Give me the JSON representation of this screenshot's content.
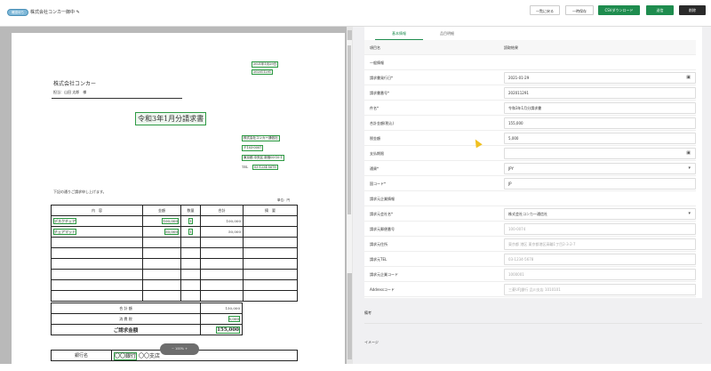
{
  "header": {
    "badge": "確認待ち",
    "title": "株式会社コンカー御中",
    "edit_icon": "pencil-icon",
    "buttons": {
      "back": "一覧に戻る",
      "save": "一時保存",
      "csv": "CSVダウンロード",
      "send": "送信",
      "delete": "削除"
    }
  },
  "document": {
    "date": "2021年1月29日",
    "number": "202011291",
    "to_company": "株式会社コンカー",
    "to_person": "担当：山田 太郎　様",
    "title": "令和3年1月分請求書",
    "from_company": "株式会社コンカー通信社",
    "from_zip": "〒103-0007",
    "from_address": "東京都 中央区 新宿00-10-1",
    "tel_label": "TEL",
    "tel": "03-1234-5678",
    "intro": "下記の通りご請求申し上げます。",
    "unit": "単位：円",
    "columns": [
      "内　容",
      "金額",
      "数量",
      "合計",
      "摘　要"
    ],
    "items": [
      {
        "name": "デスクチェア",
        "price": "100,000",
        "qty": "1",
        "total": "100,000"
      },
      {
        "name": "チェアマット",
        "price": "50,000",
        "qty": "1",
        "total": "50,000"
      }
    ],
    "subtotal_label": "合 計 額",
    "subtotal": "150,000",
    "tax_label": "消 費 税",
    "tax": "5,000",
    "grand_label": "ご請求金額",
    "grand": "155,000",
    "bank_label": "銀行名",
    "bank": "〇〇銀行",
    "branch": "〇〇支店",
    "zoom": "−  100%  +"
  },
  "panel": {
    "tabs": [
      "基本情報",
      "品目明細"
    ],
    "col_item": "項目名",
    "col_result": "読取結果",
    "section1": "一般情報",
    "fields1": [
      {
        "label": "請求書発行日*",
        "value": "2021-01-29",
        "icon": "calendar-icon"
      },
      {
        "label": "請求書番号*",
        "value": "202011291"
      },
      {
        "label": "件名*",
        "value": "令和3年1月分請求書"
      },
      {
        "label": "合計金額(税込)",
        "value": "155,000"
      },
      {
        "label": "税金額",
        "value": "5,000"
      },
      {
        "label": "支払期限",
        "value": "",
        "icon": "calendar-icon"
      },
      {
        "label": "通貨*",
        "value": "JPY",
        "icon": "dropdown-icon"
      },
      {
        "label": "国コード*",
        "value": "JP"
      }
    ],
    "section2": "請求元企業情報",
    "fields2": [
      {
        "label": "請求元会社名*",
        "value": "株式会社コンカー通信社",
        "icon": "dropdown-icon"
      },
      {
        "label": "請求元郵便番号",
        "placeholder": "100-0074"
      },
      {
        "label": "請求元住所",
        "placeholder": "東京都 港区 東京都港区高輪1丁目2-3-2-7"
      },
      {
        "label": "請求元TEL",
        "placeholder": "03-1234-5678"
      },
      {
        "label": "請求元企業コード",
        "placeholder": "1000001"
      },
      {
        "label": "Addressコード",
        "placeholder": "三菱UFJ銀行 品川支店 1010101"
      }
    ],
    "memo": "備考",
    "image": "イメージ"
  }
}
